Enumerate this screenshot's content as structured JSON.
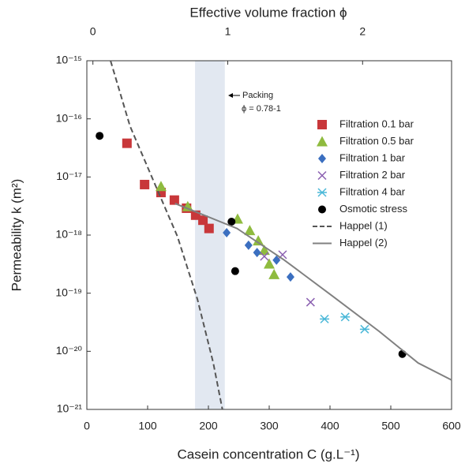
{
  "chart_data": {
    "type": "scatter",
    "x2_title": "Effective volume fraction ϕ",
    "xlabel": "Casein concentration C (g.L⁻¹)",
    "ylabel": "Permeability k (m²)",
    "xlim": [
      0,
      600
    ],
    "xticks": [
      0,
      100,
      200,
      300,
      400,
      500,
      600
    ],
    "x2lim": [
      -0.045,
      2.66
    ],
    "x2ticks": [
      0,
      1,
      2
    ],
    "ylim": [
      1e-21,
      1e-15
    ],
    "yscale": "log",
    "yticks": [
      {
        "value": 1e-21,
        "label": "10⁻²¹"
      },
      {
        "value": 1e-20,
        "label": "10⁻²⁰"
      },
      {
        "value": 1e-19,
        "label": "10⁻¹⁹"
      },
      {
        "value": 1e-18,
        "label": "10⁻¹⁸"
      },
      {
        "value": 1e-17,
        "label": "10⁻¹⁷"
      },
      {
        "value": 1e-16,
        "label": "10⁻¹⁶"
      },
      {
        "value": 1e-15,
        "label": "10⁻¹⁵"
      }
    ],
    "shaded_region": {
      "x": [
        178,
        227
      ],
      "color": "#e2e8f1"
    },
    "annotations": [
      "Packing",
      "ϕ = 0.78-1"
    ],
    "legend": "upper right",
    "series": [
      {
        "name": "Filtration 0.1 bar",
        "color": "#c8373a",
        "marker": "square",
        "x": [
          66,
          95,
          122,
          144,
          164,
          179,
          191,
          201
        ],
        "values": [
          3.8e-17,
          7.4e-18,
          5.4e-18,
          4e-18,
          2.9e-18,
          2.2e-18,
          1.8e-18,
          1.3e-18
        ]
      },
      {
        "name": "Filtration 0.5 bar",
        "color": "#8fbb3f",
        "marker": "triangle",
        "x": [
          122,
          166,
          248,
          268,
          282,
          292,
          300,
          308
        ],
        "values": [
          6.9e-18,
          3.1e-18,
          1.9e-18,
          1.2e-18,
          8e-19,
          5.5e-19,
          3.2e-19,
          2.1e-19
        ]
      },
      {
        "name": "Filtration 1 bar",
        "color": "#3b6fc0",
        "marker": "diamond",
        "x": [
          230,
          266,
          280,
          312,
          335
        ],
        "values": [
          1.1e-18,
          6.7e-19,
          5e-19,
          3.7e-19,
          1.9e-19
        ]
      },
      {
        "name": "Filtration 2 bar",
        "color": "#8a5fb0",
        "marker": "x",
        "x": [
          292,
          322,
          368
        ],
        "values": [
          4.3e-19,
          4.6e-19,
          7e-20
        ]
      },
      {
        "name": "Filtration 4 bar",
        "color": "#4bb8d8",
        "marker": "star",
        "x": [
          391,
          425,
          457
        ],
        "values": [
          3.6e-20,
          3.9e-20,
          2.4e-20
        ]
      },
      {
        "name": "Osmotic stress",
        "color": "#000000",
        "marker": "circle",
        "x": [
          21,
          238,
          244,
          519
        ],
        "values": [
          5.1e-17,
          1.7e-18,
          2.4e-19,
          9e-21
        ]
      },
      {
        "name": "Happel (1)",
        "color": "#555555",
        "marker": "dashed-line",
        "x": [
          39,
          71,
          110,
          149,
          182,
          208,
          223
        ],
        "values": [
          1e-15,
          7.5e-17,
          8.4e-18,
          9.5e-19,
          7.8e-20,
          6.3e-21,
          1e-21
        ]
      },
      {
        "name": "Happel (2)",
        "color": "#808080",
        "marker": "line",
        "x": [
          145,
          247,
          325,
          403,
          481,
          545,
          600
        ],
        "values": [
          3.5e-18,
          1.3e-18,
          3.7e-19,
          9.1e-20,
          2.2e-20,
          6.3e-21,
          3.2e-21
        ]
      }
    ]
  }
}
